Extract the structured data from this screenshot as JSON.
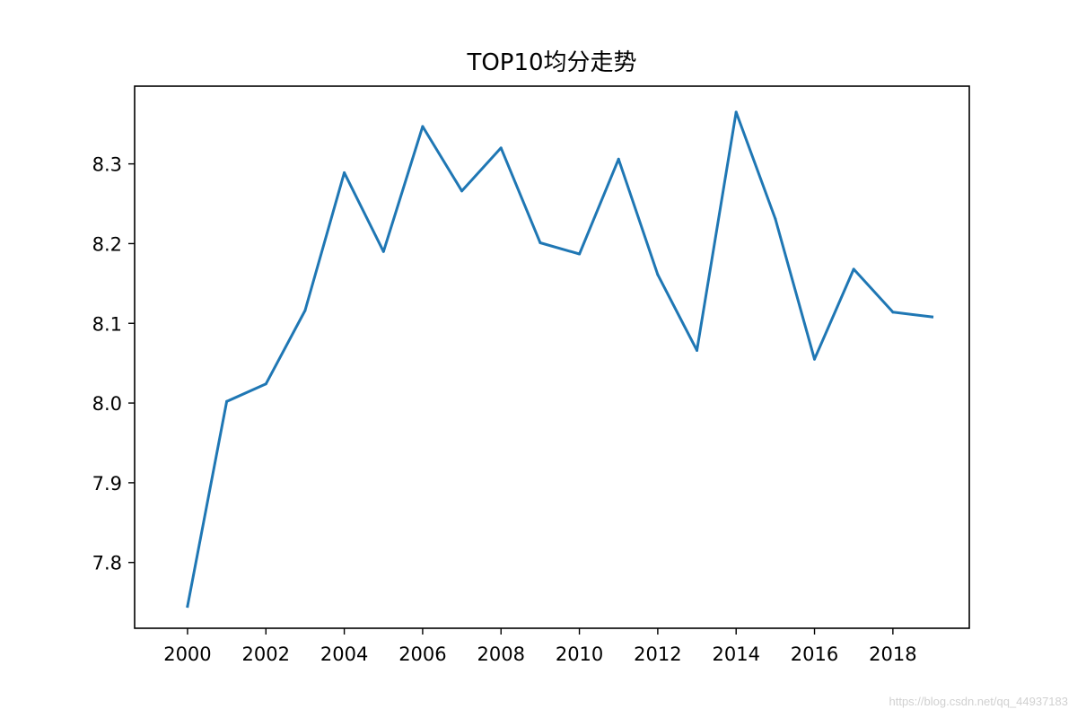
{
  "chart_data": {
    "type": "line",
    "title": "TOP10均分走势",
    "xlabel": "",
    "ylabel": "",
    "x": [
      2000,
      2001,
      2002,
      2003,
      2004,
      2005,
      2006,
      2007,
      2008,
      2009,
      2010,
      2011,
      2012,
      2013,
      2014,
      2015,
      2016,
      2017,
      2018,
      2019
    ],
    "series": [
      {
        "values": [
          7.745,
          8.002,
          8.024,
          8.116,
          8.289,
          8.19,
          8.347,
          8.266,
          8.32,
          8.201,
          8.187,
          8.306,
          8.161,
          8.066,
          8.365,
          8.231,
          8.055,
          8.168,
          8.114,
          8.108
        ],
        "color": "#1f77b4"
      }
    ],
    "xlim": [
      1998.65,
      2019.95
    ],
    "ylim": [
      7.7175,
      8.3975
    ],
    "x_ticks": [
      2000,
      2002,
      2004,
      2006,
      2008,
      2010,
      2012,
      2014,
      2016,
      2018
    ],
    "x_tick_labels": [
      "2000",
      "2002",
      "2004",
      "2006",
      "2008",
      "2010",
      "2012",
      "2014",
      "2016",
      "2018"
    ],
    "y_ticks": [
      7.8,
      7.9,
      8.0,
      8.1,
      8.2,
      8.3
    ],
    "y_tick_labels": [
      "7.8",
      "7.9",
      "8.0",
      "8.1",
      "8.2",
      "8.3"
    ],
    "grid": false,
    "legend": "none"
  },
  "watermark": "https://blog.csdn.net/qq_44937183"
}
